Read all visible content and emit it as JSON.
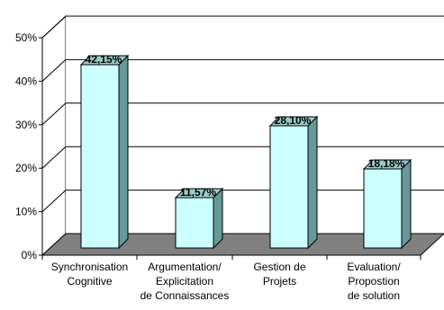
{
  "chart_data": {
    "type": "bar",
    "categories": [
      [
        "Synchronisation",
        "Cognitive"
      ],
      [
        "Argumentation/",
        "Explicitation",
        "de Connaissances"
      ],
      [
        "Gestion de",
        "Projets"
      ],
      [
        "Evaluation/",
        "Propostion",
        "de solution"
      ]
    ],
    "values": [
      42.15,
      11.57,
      28.1,
      18.18
    ],
    "data_labels": [
      "42,15%",
      "11,57%",
      "28,10%",
      "18,18%"
    ],
    "yticks": [
      {
        "value": 0,
        "label": "0%"
      },
      {
        "value": 10,
        "label": "10%"
      },
      {
        "value": 20,
        "label": "20%"
      },
      {
        "value": 30,
        "label": "30%"
      },
      {
        "value": 40,
        "label": "40%"
      },
      {
        "value": 50,
        "label": "50%"
      }
    ],
    "ylim": [
      0,
      50
    ],
    "title": "",
    "xlabel": "",
    "ylabel": "",
    "grid": true,
    "three_d": true,
    "colors": {
      "bar_front": "#ccffff",
      "bar_side": "#669999",
      "bar_top": "#99cccc",
      "floor": "#808080",
      "wall": "#ffffff",
      "grid": "#000000",
      "outline": "#000000"
    }
  }
}
